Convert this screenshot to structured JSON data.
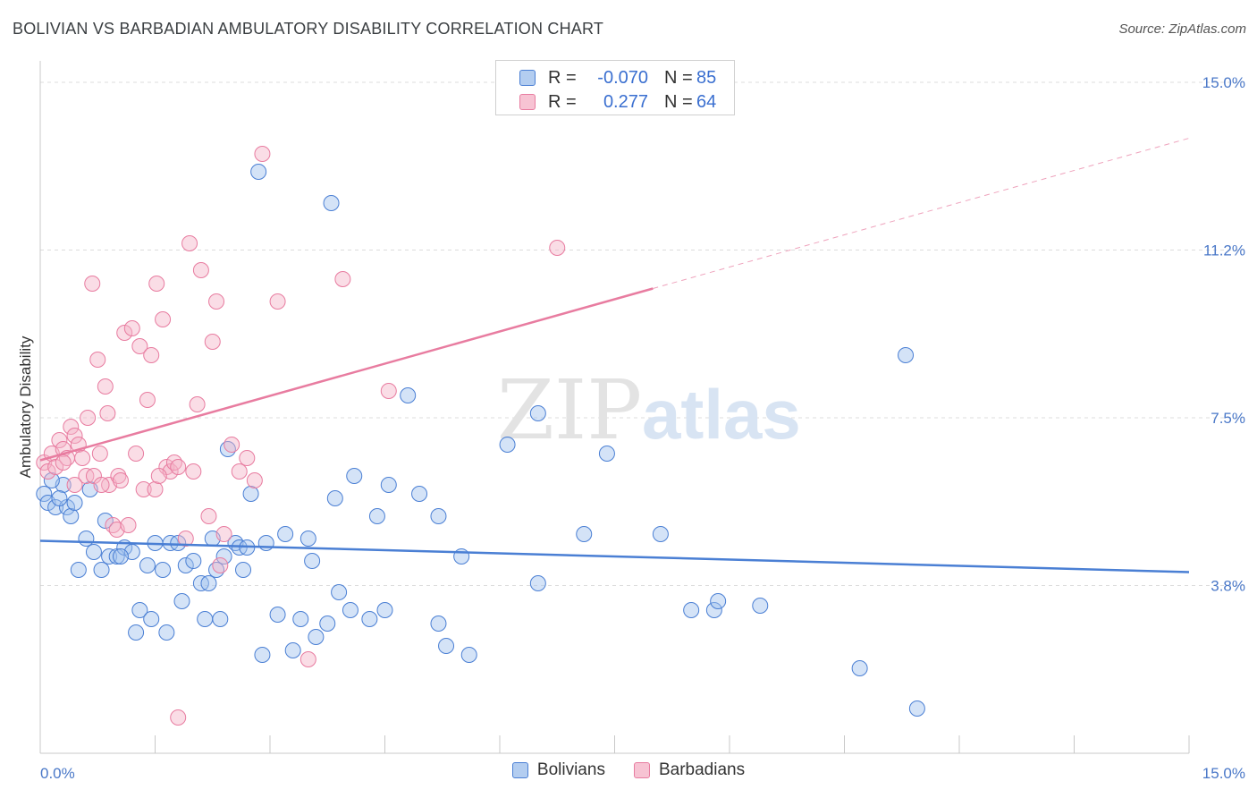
{
  "title": "BOLIVIAN VS BARBADIAN AMBULATORY DISABILITY CORRELATION CHART",
  "source": "Source: ZipAtlas.com",
  "watermark": {
    "zip": "ZIP",
    "atlas": "atlas"
  },
  "legend": {
    "rows": [
      {
        "r_label": "R =",
        "r_value": "-0.070",
        "n_label": "N =",
        "n_value": "85",
        "color": "#4a7fd4"
      },
      {
        "r_label": "R =",
        "r_value": "0.277",
        "n_label": "N =",
        "n_value": "64",
        "color": "#e87ca0"
      }
    ]
  },
  "bottom_legend": [
    "Bolivians",
    "Barbadians"
  ],
  "chart_data": {
    "type": "scatter",
    "title": "BOLIVIAN VS BARBADIAN AMBULATORY DISABILITY CORRELATION CHART",
    "xlabel": "",
    "ylabel": "Ambulatory Disability",
    "x_ticks": [
      "0.0%",
      "15.0%"
    ],
    "y_ticks": [
      "15.0%",
      "11.2%",
      "7.5%",
      "3.8%"
    ],
    "y_tick_values": [
      15.0,
      11.25,
      7.5,
      3.75
    ],
    "xlim": [
      0,
      15
    ],
    "ylim": [
      0,
      15.4
    ],
    "grid": true,
    "colors": {
      "bolivians": "#4a7fd4",
      "barbadians": "#e87ca0"
    },
    "series": [
      {
        "name": "Bolivians",
        "color": "#4a7fd4",
        "trend": {
          "x": [
            0,
            15
          ],
          "y": [
            4.75,
            4.05
          ],
          "dashed_from": null
        },
        "points": [
          [
            0.05,
            5.8
          ],
          [
            0.1,
            5.6
          ],
          [
            0.2,
            5.5
          ],
          [
            0.3,
            6.0
          ],
          [
            0.35,
            5.5
          ],
          [
            0.4,
            5.3
          ],
          [
            0.45,
            5.6
          ],
          [
            0.5,
            4.1
          ],
          [
            0.6,
            4.8
          ],
          [
            0.7,
            4.5
          ],
          [
            0.8,
            4.1
          ],
          [
            0.85,
            5.2
          ],
          [
            0.9,
            4.4
          ],
          [
            1.0,
            4.4
          ],
          [
            1.1,
            4.6
          ],
          [
            1.2,
            4.5
          ],
          [
            1.25,
            2.7
          ],
          [
            1.3,
            3.2
          ],
          [
            1.4,
            4.2
          ],
          [
            1.45,
            3.0
          ],
          [
            1.5,
            4.7
          ],
          [
            1.6,
            4.1
          ],
          [
            1.65,
            2.7
          ],
          [
            1.7,
            4.7
          ],
          [
            1.8,
            4.7
          ],
          [
            1.85,
            3.4
          ],
          [
            1.9,
            4.2
          ],
          [
            2.0,
            4.3
          ],
          [
            2.1,
            3.8
          ],
          [
            2.15,
            3.0
          ],
          [
            2.2,
            3.8
          ],
          [
            2.3,
            4.1
          ],
          [
            2.35,
            3.0
          ],
          [
            2.4,
            4.4
          ],
          [
            2.45,
            6.8
          ],
          [
            2.55,
            4.7
          ],
          [
            2.6,
            4.6
          ],
          [
            2.65,
            4.1
          ],
          [
            2.7,
            4.6
          ],
          [
            2.75,
            5.8
          ],
          [
            2.85,
            13.0
          ],
          [
            2.9,
            2.2
          ],
          [
            2.95,
            4.7
          ],
          [
            3.1,
            3.1
          ],
          [
            3.2,
            4.9
          ],
          [
            3.3,
            2.3
          ],
          [
            3.4,
            3.0
          ],
          [
            3.5,
            4.8
          ],
          [
            3.55,
            4.3
          ],
          [
            3.6,
            2.6
          ],
          [
            3.75,
            2.9
          ],
          [
            3.8,
            12.3
          ],
          [
            3.85,
            5.7
          ],
          [
            3.9,
            3.6
          ],
          [
            4.05,
            3.2
          ],
          [
            4.1,
            6.2
          ],
          [
            4.3,
            3.0
          ],
          [
            4.4,
            5.3
          ],
          [
            4.5,
            3.2
          ],
          [
            4.55,
            6.0
          ],
          [
            4.8,
            8.0
          ],
          [
            4.95,
            5.8
          ],
          [
            5.2,
            5.3
          ],
          [
            5.2,
            2.9
          ],
          [
            5.3,
            2.4
          ],
          [
            5.5,
            4.4
          ],
          [
            5.6,
            2.2
          ],
          [
            6.1,
            6.9
          ],
          [
            6.5,
            7.6
          ],
          [
            6.5,
            3.8
          ],
          [
            7.1,
            4.9
          ],
          [
            7.4,
            6.7
          ],
          [
            8.1,
            4.9
          ],
          [
            8.5,
            3.2
          ],
          [
            8.8,
            3.2
          ],
          [
            8.85,
            3.4
          ],
          [
            9.4,
            3.3
          ],
          [
            10.7,
            1.9
          ],
          [
            11.3,
            8.9
          ],
          [
            11.45,
            1.0
          ],
          [
            0.25,
            5.7
          ],
          [
            0.65,
            5.9
          ],
          [
            1.05,
            4.4
          ],
          [
            2.25,
            4.8
          ],
          [
            0.15,
            6.1
          ]
        ]
      },
      {
        "name": "Barbadians",
        "color": "#e87ca0",
        "trend": {
          "x": [
            0,
            15
          ],
          "y": [
            6.55,
            13.75
          ],
          "dashed_from": 8.0
        },
        "points": [
          [
            0.05,
            6.5
          ],
          [
            0.1,
            6.3
          ],
          [
            0.15,
            6.7
          ],
          [
            0.2,
            6.4
          ],
          [
            0.25,
            7.0
          ],
          [
            0.3,
            6.8
          ],
          [
            0.35,
            6.6
          ],
          [
            0.4,
            7.3
          ],
          [
            0.45,
            7.1
          ],
          [
            0.5,
            6.9
          ],
          [
            0.55,
            6.6
          ],
          [
            0.6,
            6.2
          ],
          [
            0.62,
            7.5
          ],
          [
            0.68,
            10.5
          ],
          [
            0.75,
            8.8
          ],
          [
            0.78,
            6.7
          ],
          [
            0.85,
            8.2
          ],
          [
            0.88,
            7.6
          ],
          [
            0.9,
            6.0
          ],
          [
            0.95,
            5.1
          ],
          [
            1.0,
            5.0
          ],
          [
            1.02,
            6.2
          ],
          [
            1.1,
            9.4
          ],
          [
            1.15,
            5.1
          ],
          [
            1.2,
            9.5
          ],
          [
            1.25,
            6.7
          ],
          [
            1.3,
            9.1
          ],
          [
            1.35,
            5.9
          ],
          [
            1.4,
            7.9
          ],
          [
            1.45,
            8.9
          ],
          [
            1.5,
            5.9
          ],
          [
            1.52,
            10.5
          ],
          [
            1.6,
            9.7
          ],
          [
            1.65,
            6.4
          ],
          [
            1.7,
            6.3
          ],
          [
            1.75,
            6.5
          ],
          [
            1.8,
            6.4
          ],
          [
            1.9,
            4.8
          ],
          [
            1.95,
            11.4
          ],
          [
            2.0,
            6.3
          ],
          [
            2.05,
            7.8
          ],
          [
            2.1,
            10.8
          ],
          [
            2.2,
            5.3
          ],
          [
            2.25,
            9.2
          ],
          [
            2.3,
            10.1
          ],
          [
            2.4,
            4.9
          ],
          [
            2.5,
            6.9
          ],
          [
            2.6,
            6.3
          ],
          [
            2.7,
            6.6
          ],
          [
            2.8,
            6.1
          ],
          [
            2.9,
            13.4
          ],
          [
            3.1,
            10.1
          ],
          [
            3.5,
            2.1
          ],
          [
            3.95,
            10.6
          ],
          [
            4.55,
            8.1
          ],
          [
            6.75,
            11.3
          ],
          [
            1.8,
            0.8
          ],
          [
            2.35,
            4.2
          ],
          [
            0.3,
            6.5
          ],
          [
            0.7,
            6.2
          ],
          [
            1.05,
            6.1
          ],
          [
            0.45,
            6.0
          ],
          [
            1.55,
            6.2
          ],
          [
            0.8,
            6.0
          ]
        ]
      }
    ]
  }
}
